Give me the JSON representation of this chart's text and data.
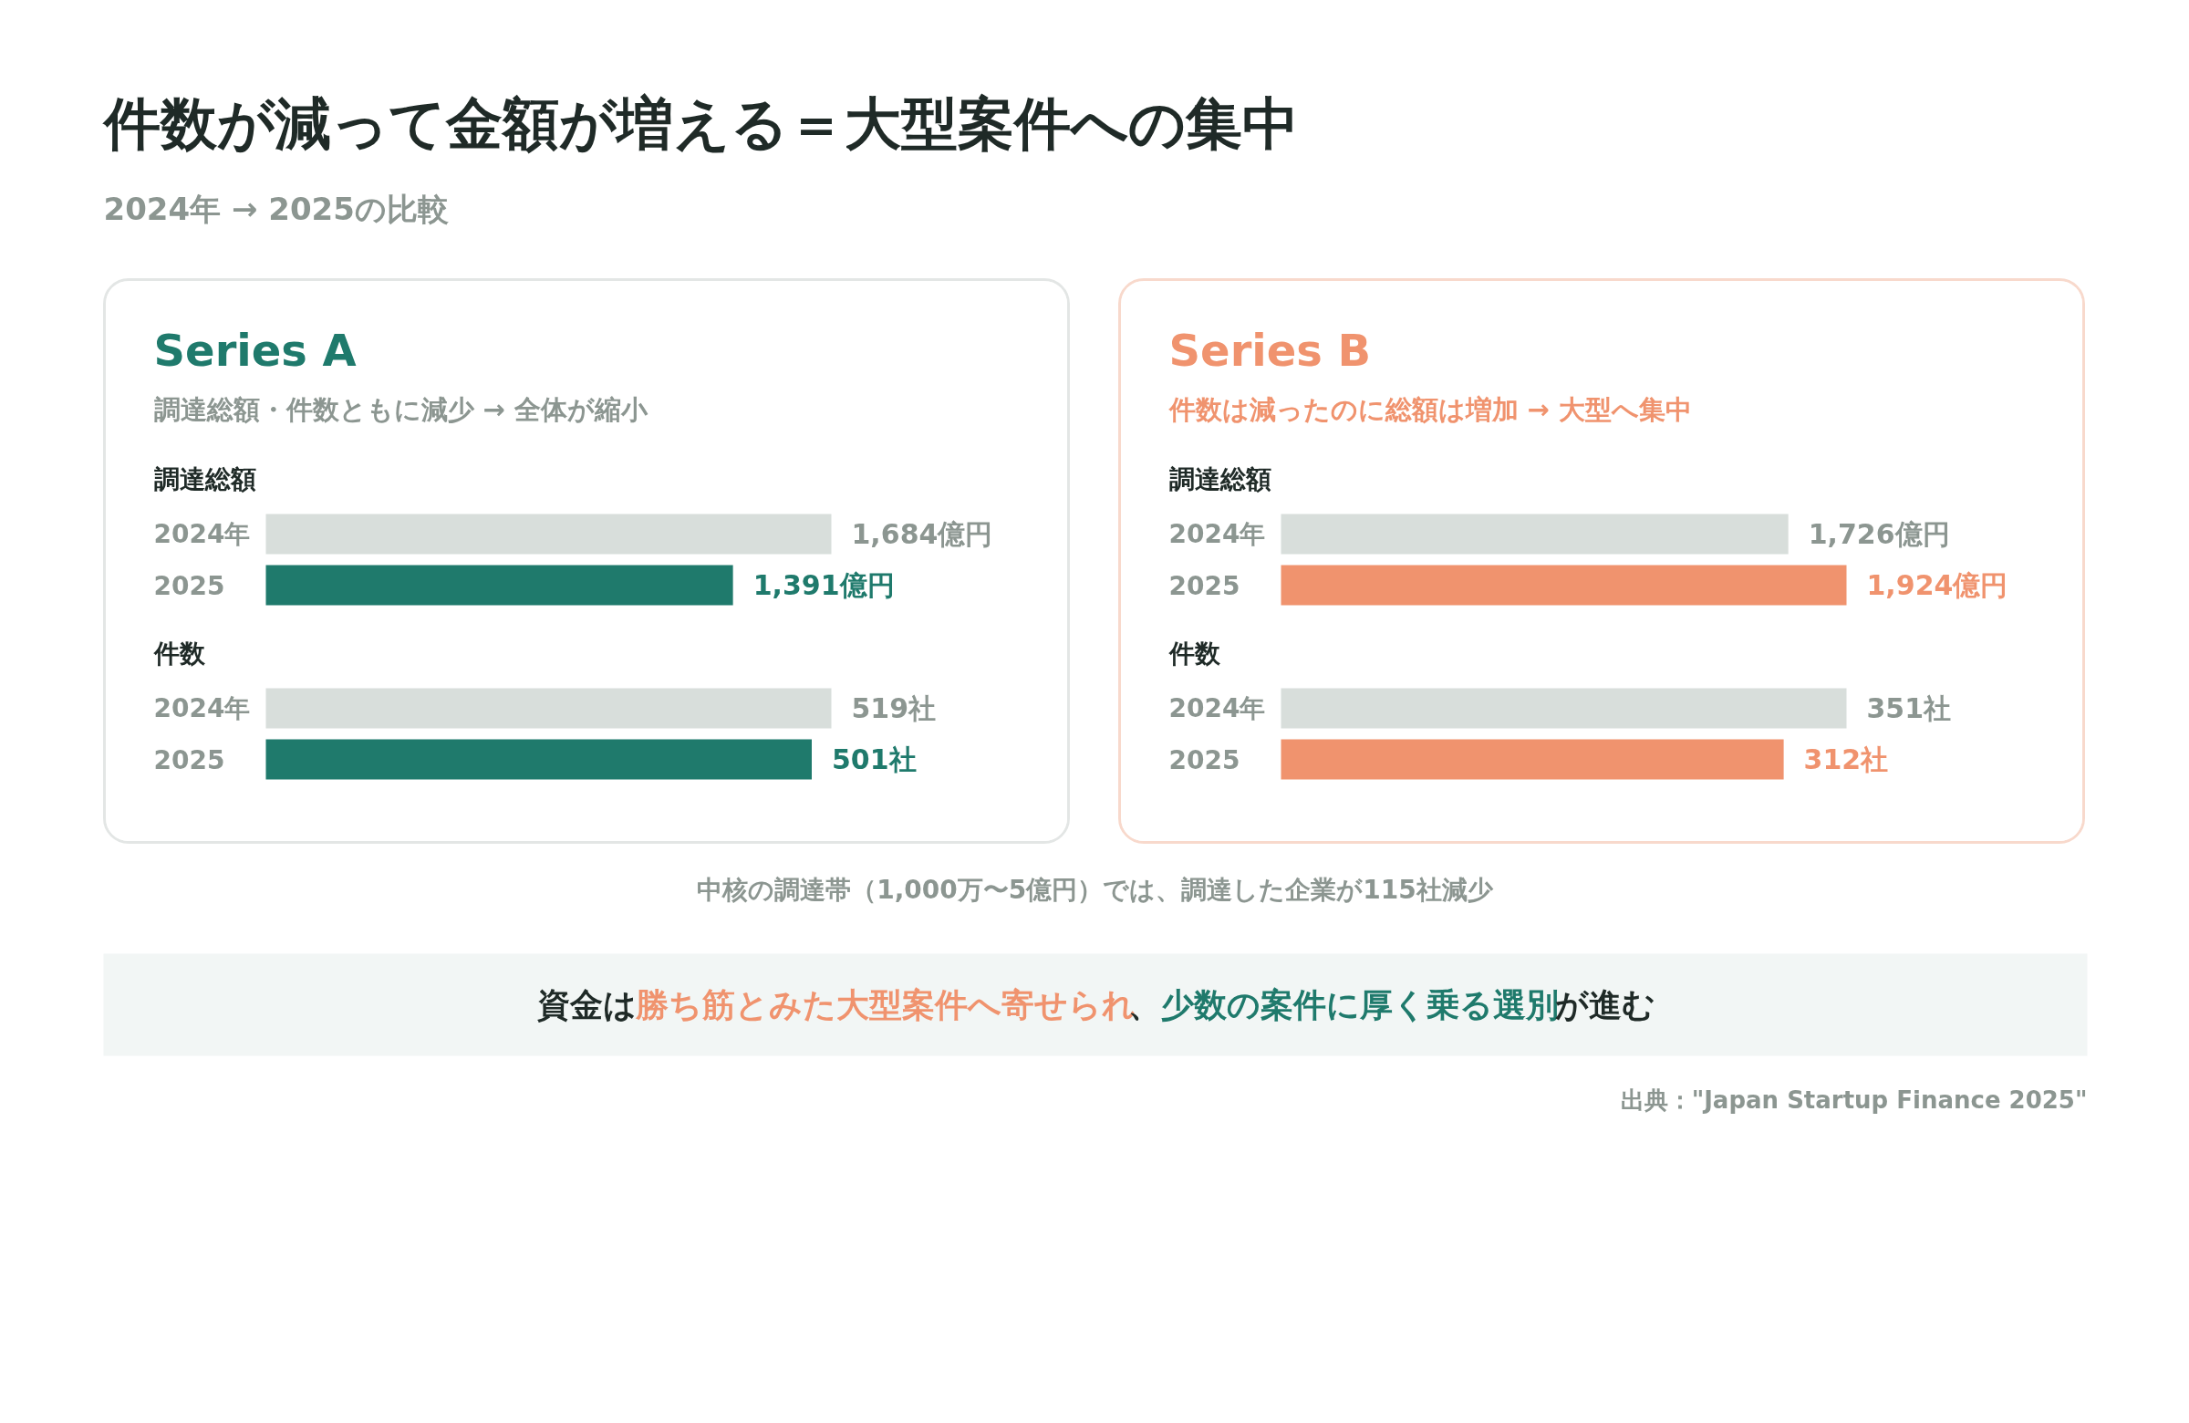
{
  "chart_data": [
    {
      "type": "other",
      "title": "件数が減って金額が増える＝大型案件への集中",
      "subtitle": "2024年 → 2025の比較"
    },
    {
      "type": "bar",
      "orientation": "horizontal",
      "title": "Series A",
      "subtitle": "調達総額・件数ともに減少 → 全体が縮小",
      "annotations": [
        "調達総額"
      ],
      "categories": [
        "2024年",
        "2025"
      ],
      "values": [
        1684,
        1391
      ],
      "colors": [
        "#d8dedb",
        "#1f7a6c"
      ],
      "value_labels": [
        "1,684億円",
        "1,391億円"
      ],
      "tick_labels": false
    },
    {
      "type": "bar",
      "orientation": "horizontal",
      "annotations": [
        "件数"
      ],
      "categories": [
        "2024年",
        "2025"
      ],
      "values": [
        519,
        501
      ],
      "colors": [
        "#d8dedb",
        "#1f7a6c"
      ],
      "value_labels": [
        "519社",
        "501社"
      ],
      "tick_labels": false
    },
    {
      "type": "bar",
      "orientation": "horizontal",
      "title": "Series B",
      "subtitle": "件数は減ったのに総額は増加 → 大型へ集中",
      "annotations": [
        "調達総額"
      ],
      "categories": [
        "2024年",
        "2025"
      ],
      "values": [
        1726,
        1924
      ],
      "colors": [
        "#d8dedb",
        "#f0936e"
      ],
      "value_labels": [
        "1,726億円",
        "1,924億円"
      ],
      "tick_labels": false
    },
    {
      "type": "bar",
      "orientation": "horizontal",
      "annotations": [
        "件数"
      ],
      "categories": [
        "2024年",
        "2025"
      ],
      "values": [
        351,
        312
      ],
      "colors": [
        "#d8dedb",
        "#f0936e"
      ],
      "value_labels": [
        "351社",
        "312社"
      ],
      "tick_labels": false
    },
    {
      "type": "other",
      "annotations": [
        "中核の調達帯（1,000万〜5億円）では、調達した企業が115社減少",
        "資金は",
        "勝ち筋とみた大型案件へ寄せられ",
        "、",
        "少数の案件に厚く乗る選別",
        "が進む",
        "出典：\"Japan Startup Finance 2025\""
      ]
    }
  ]
}
